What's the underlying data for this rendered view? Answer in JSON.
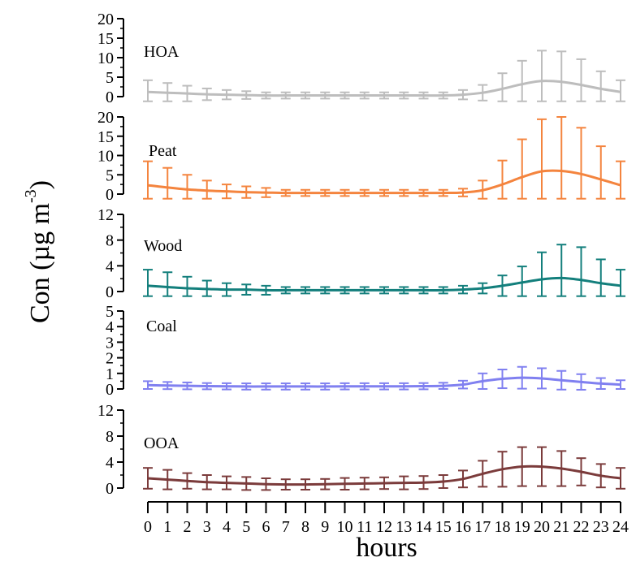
{
  "chart_data": {
    "type": "line",
    "ylabel": "Con (µg m",
    "ylabel_exponent": "-3",
    "ylabel_close": ")",
    "xlabel": "hours",
    "x": [
      0,
      1,
      2,
      3,
      4,
      5,
      6,
      7,
      8,
      9,
      10,
      11,
      12,
      13,
      14,
      15,
      16,
      17,
      18,
      19,
      20,
      21,
      22,
      23,
      24
    ],
    "x_tick_labels": [
      "0",
      "1",
      "2",
      "3",
      "4",
      "5",
      "6",
      "7",
      "8",
      "9",
      "10",
      "11",
      "12",
      "13",
      "14",
      "15",
      "16",
      "17",
      "18",
      "19",
      "20",
      "21",
      "22",
      "23",
      "24"
    ],
    "panels": [
      {
        "name": "HOA",
        "color": "#bdbdbd",
        "ylim": [
          0,
          20
        ],
        "yticks": [
          0,
          5,
          10,
          15,
          20
        ],
        "values": [
          1.2,
          1.0,
          0.8,
          0.6,
          0.5,
          0.4,
          0.3,
          0.3,
          0.3,
          0.3,
          0.3,
          0.3,
          0.3,
          0.3,
          0.3,
          0.3,
          0.5,
          1.0,
          2.0,
          3.2,
          4.0,
          3.8,
          3.0,
          2.0,
          1.2
        ],
        "errors": [
          3.0,
          2.5,
          2.0,
          1.5,
          1.2,
          1.0,
          0.8,
          0.8,
          0.8,
          0.8,
          0.8,
          0.8,
          0.8,
          0.8,
          0.8,
          0.8,
          1.2,
          2.0,
          4.0,
          6.0,
          7.8,
          7.8,
          6.6,
          4.5,
          3.0
        ]
      },
      {
        "name": "Peat",
        "color": "#f4843e",
        "ylim": [
          0,
          20
        ],
        "yticks": [
          0,
          5,
          10,
          15,
          20
        ],
        "values": [
          2.3,
          1.7,
          1.2,
          0.9,
          0.7,
          0.5,
          0.4,
          0.3,
          0.3,
          0.3,
          0.3,
          0.3,
          0.3,
          0.3,
          0.3,
          0.3,
          0.4,
          1.0,
          2.5,
          4.4,
          5.9,
          6.0,
          5.2,
          3.8,
          2.3
        ],
        "errors": [
          6.2,
          5.1,
          3.8,
          2.6,
          1.8,
          1.5,
          1.2,
          0.8,
          0.8,
          0.8,
          0.8,
          0.8,
          0.8,
          0.8,
          0.8,
          0.8,
          1.0,
          2.5,
          6.2,
          9.8,
          13.5,
          14.0,
          12.0,
          8.6,
          6.2
        ]
      },
      {
        "name": "Wood",
        "color": "#137f7c",
        "ylim": [
          0,
          12
        ],
        "yticks": [
          0,
          4,
          8,
          12
        ],
        "values": [
          0.9,
          0.7,
          0.5,
          0.4,
          0.3,
          0.3,
          0.2,
          0.2,
          0.2,
          0.2,
          0.2,
          0.2,
          0.2,
          0.2,
          0.2,
          0.2,
          0.3,
          0.5,
          0.9,
          1.4,
          1.9,
          2.1,
          1.8,
          1.3,
          0.9
        ],
        "errors": [
          2.5,
          2.3,
          1.8,
          1.3,
          1.0,
          0.8,
          0.7,
          0.5,
          0.5,
          0.5,
          0.5,
          0.5,
          0.5,
          0.5,
          0.5,
          0.5,
          0.6,
          0.8,
          1.6,
          2.5,
          4.2,
          5.2,
          5.1,
          3.7,
          2.5
        ]
      },
      {
        "name": "Coal",
        "color": "#8080f0",
        "ylim": [
          0,
          5
        ],
        "yticks": [
          0,
          1,
          2,
          3,
          4,
          5
        ],
        "values": [
          0.25,
          0.22,
          0.2,
          0.18,
          0.17,
          0.16,
          0.16,
          0.16,
          0.16,
          0.16,
          0.17,
          0.17,
          0.17,
          0.17,
          0.18,
          0.2,
          0.28,
          0.5,
          0.65,
          0.72,
          0.68,
          0.56,
          0.45,
          0.35,
          0.28
        ],
        "errors": [
          0.25,
          0.23,
          0.22,
          0.2,
          0.2,
          0.2,
          0.2,
          0.2,
          0.2,
          0.2,
          0.2,
          0.2,
          0.2,
          0.2,
          0.2,
          0.2,
          0.25,
          0.5,
          0.6,
          0.7,
          0.65,
          0.6,
          0.5,
          0.35,
          0.28
        ]
      },
      {
        "name": "OOA",
        "color": "#7b3b3b",
        "ylim": [
          0,
          12
        ],
        "yticks": [
          0,
          4,
          8,
          12
        ],
        "values": [
          1.5,
          1.3,
          1.1,
          0.9,
          0.8,
          0.7,
          0.6,
          0.55,
          0.55,
          0.6,
          0.65,
          0.7,
          0.75,
          0.8,
          0.85,
          1.0,
          1.4,
          2.2,
          2.9,
          3.3,
          3.3,
          3.0,
          2.5,
          1.9,
          1.5
        ],
        "errors": [
          1.6,
          1.5,
          1.2,
          1.1,
          1.0,
          1.0,
          0.9,
          0.8,
          0.8,
          0.8,
          0.9,
          0.9,
          0.9,
          1.0,
          1.0,
          1.0,
          1.3,
          2.0,
          2.7,
          3.0,
          3.0,
          2.7,
          2.1,
          1.8,
          1.6
        ]
      }
    ]
  }
}
